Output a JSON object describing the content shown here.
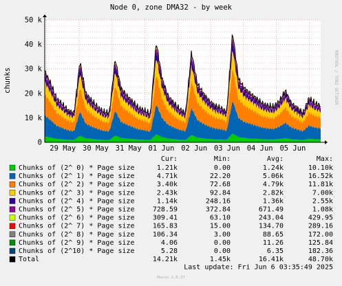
{
  "chart_data": {
    "type": "area",
    "title": "Node 0, zone DMA32 - by week",
    "ylabel": "chunks",
    "xlabel": "",
    "ylim": [
      0,
      50000
    ],
    "y_ticks": [
      0,
      10000,
      20000,
      30000,
      40000,
      50000
    ],
    "y_tick_labels": [
      "0",
      "10 k",
      "20 k",
      "30 k",
      "40 k",
      "50 k"
    ],
    "x_ticks": [
      "29 May",
      "30 May",
      "31 May",
      "01 Jun",
      "02 Jun",
      "03 Jun",
      "04 Jun",
      "05 Jun"
    ],
    "grid": true,
    "watermark": "RRDTOOL / TOBI OETIKER",
    "footer": "Munin 2.0.37",
    "last_update": "Last update: Fri Jun  6 03:35:49 2025",
    "legend_headers": [
      "Cur:",
      "Min:",
      "Avg:",
      "Max:"
    ],
    "series": [
      {
        "name": "Chunks of (2^ 0) * Page size",
        "color": "#00cc00",
        "cur": "1.21k",
        "min": "0.00",
        "avg": "1.24k",
        "max": "10.10k"
      },
      {
        "name": "Chunks of (2^ 1) * Page size",
        "color": "#0066b3",
        "cur": "4.71k",
        "min": "22.20",
        "avg": "5.06k",
        "max": "16.52k"
      },
      {
        "name": "Chunks of (2^ 2) * Page size",
        "color": "#ff8000",
        "cur": "3.40k",
        "min": "72.68",
        "avg": "4.79k",
        "max": "11.81k"
      },
      {
        "name": "Chunks of (2^ 3) * Page size",
        "color": "#ffcc00",
        "cur": "2.43k",
        "min": "92.84",
        "avg": "2.82k",
        "max": "7.00k"
      },
      {
        "name": "Chunks of (2^ 4) * Page size",
        "color": "#330099",
        "cur": "1.14k",
        "min": "248.16",
        "avg": "1.36k",
        "max": "2.55k"
      },
      {
        "name": "Chunks of (2^ 5) * Page size",
        "color": "#990099",
        "cur": "728.59",
        "min": "372.84",
        "avg": "671.49",
        "max": "1.08k"
      },
      {
        "name": "Chunks of (2^ 6) * Page size",
        "color": "#ccff00",
        "cur": "309.41",
        "min": "63.10",
        "avg": "243.04",
        "max": "429.95"
      },
      {
        "name": "Chunks of (2^ 7) * Page size",
        "color": "#ff0000",
        "cur": "165.83",
        "min": "15.00",
        "avg": "134.70",
        "max": "289.16"
      },
      {
        "name": "Chunks of (2^ 8) * Page size",
        "color": "#808080",
        "cur": "106.34",
        "min": "3.00",
        "avg": "88.65",
        "max": "172.00"
      },
      {
        "name": "Chunks of (2^ 9) * Page size",
        "color": "#008f00",
        "cur": "4.06",
        "min": "0.00",
        "avg": "11.26",
        "max": "125.84"
      },
      {
        "name": "Chunks of (2^10) * Page size",
        "color": "#00487d",
        "cur": "5.28",
        "min": "0.00",
        "avg": "6.35",
        "max": "182.36"
      },
      {
        "name": "Total",
        "color": "#000000",
        "cur": "14.21k",
        "min": "1.45k",
        "avg": "16.41k",
        "max": "48.70k"
      }
    ],
    "total_profile": [
      29000,
      24000,
      18000,
      15500,
      13000,
      12000,
      33000,
      20000,
      17000,
      14500,
      12500,
      12000,
      34000,
      22000,
      19000,
      16500,
      14000,
      13000,
      11500,
      41000,
      26000,
      19000,
      16000,
      13500,
      12000,
      37000,
      24000,
      20000,
      17000,
      15000,
      14000,
      12500,
      45000,
      26000,
      22000,
      20000,
      18000,
      16000,
      15000,
      14500,
      17000,
      21000,
      16000,
      14000,
      12000,
      18000,
      16000,
      15000
    ]
  }
}
